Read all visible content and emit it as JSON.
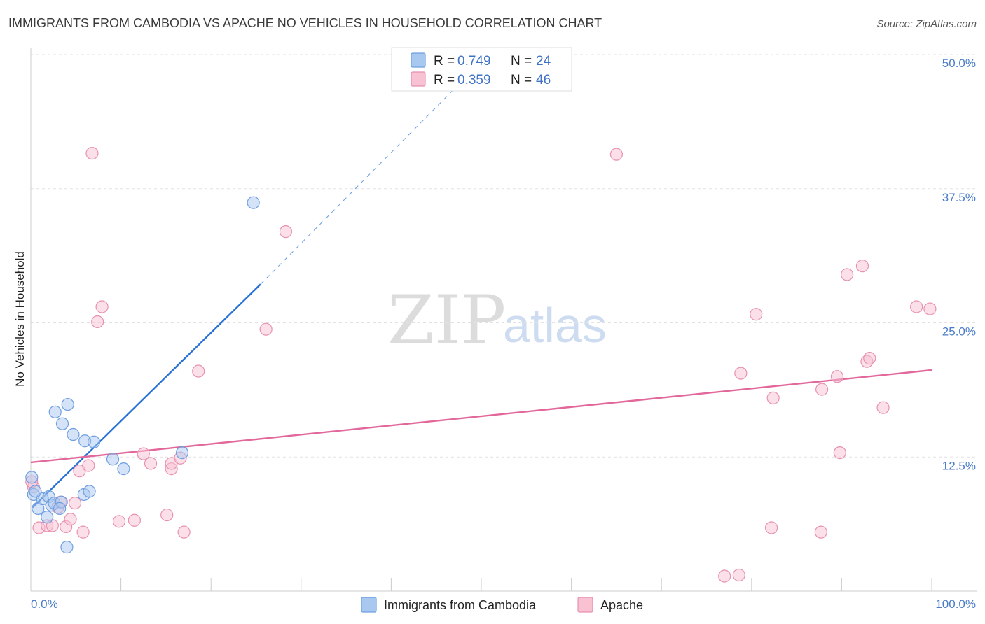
{
  "title": "IMMIGRANTS FROM CAMBODIA VS APACHE NO VEHICLES IN HOUSEHOLD CORRELATION CHART",
  "source": "Source: ZipAtlas.com",
  "watermark": {
    "zip": "ZIP",
    "atlas": "atlas"
  },
  "chart_data": {
    "type": "scatter",
    "ylabel": "No Vehicles in Household",
    "xlim": [
      0,
      100
    ],
    "ylim": [
      0,
      50
    ],
    "x_ticks": [
      "0.0%",
      "100.0%"
    ],
    "y_ticks": [
      {
        "value": 12.5,
        "label": "12.5%"
      },
      {
        "value": 25,
        "label": "25.0%"
      },
      {
        "value": 37.5,
        "label": "37.5%"
      },
      {
        "value": 50,
        "label": "50.0%"
      }
    ],
    "grid": true,
    "legend": {
      "position": "top-center",
      "entries": [
        {
          "r_label": "R = ",
          "r_value": "0.749",
          "n_label": "N = ",
          "n_value": "24",
          "color": "#7aaae8"
        },
        {
          "r_label": "R = ",
          "r_value": "0.359",
          "n_label": "N = ",
          "n_value": "46",
          "color": "#f0a0bc"
        }
      ]
    },
    "series": [
      {
        "name": "Immigrants from Cambodia",
        "fill": "#a9c8f0",
        "stroke": "#6f9fe0",
        "trend_color": "#2872d6",
        "trend": {
          "x0": 0.2,
          "y0": 7.8,
          "x1": 25.5,
          "y1": 28.6,
          "dash_to_x": 47,
          "dash_to_y": 46.8
        },
        "points": [
          [
            0.1,
            10.6
          ],
          [
            0.3,
            9.0
          ],
          [
            0.8,
            7.7
          ],
          [
            1.3,
            8.6
          ],
          [
            2.0,
            8.8
          ],
          [
            2.3,
            8.0
          ],
          [
            2.6,
            8.2
          ],
          [
            1.8,
            6.9
          ],
          [
            3.4,
            8.3
          ],
          [
            2.7,
            16.7
          ],
          [
            3.5,
            15.6
          ],
          [
            4.1,
            17.4
          ],
          [
            4.7,
            14.6
          ],
          [
            6.0,
            14.0
          ],
          [
            7.0,
            13.9
          ],
          [
            9.1,
            12.3
          ],
          [
            10.3,
            11.4
          ],
          [
            16.8,
            12.9
          ],
          [
            5.9,
            9.0
          ],
          [
            6.5,
            9.3
          ],
          [
            3.2,
            7.7
          ],
          [
            4.0,
            4.1
          ],
          [
            24.7,
            36.2
          ],
          [
            0.5,
            9.3
          ]
        ]
      },
      {
        "name": "Apache",
        "fill": "#f8c2d3",
        "stroke": "#e891b0",
        "trend_color": "#e2679a",
        "trend": {
          "x0": 0.0,
          "y0": 12.0,
          "x1": 100.0,
          "y1": 20.6
        },
        "points": [
          [
            0.3,
            9.7
          ],
          [
            0.9,
            5.9
          ],
          [
            1.8,
            6.1
          ],
          [
            2.4,
            6.1
          ],
          [
            3.0,
            7.8
          ],
          [
            3.3,
            8.3
          ],
          [
            3.9,
            6.0
          ],
          [
            4.4,
            6.7
          ],
          [
            4.9,
            8.2
          ],
          [
            5.4,
            11.2
          ],
          [
            5.8,
            5.5
          ],
          [
            6.4,
            11.7
          ],
          [
            6.8,
            40.8
          ],
          [
            7.4,
            25.1
          ],
          [
            7.9,
            26.5
          ],
          [
            9.8,
            6.5
          ],
          [
            11.5,
            6.6
          ],
          [
            12.5,
            12.8
          ],
          [
            13.3,
            11.9
          ],
          [
            15.1,
            7.1
          ],
          [
            15.6,
            11.4
          ],
          [
            15.6,
            11.9
          ],
          [
            16.6,
            12.4
          ],
          [
            17.0,
            5.5
          ],
          [
            18.6,
            20.5
          ],
          [
            26.1,
            24.4
          ],
          [
            28.3,
            33.5
          ],
          [
            65.0,
            40.7
          ],
          [
            77.0,
            1.4
          ],
          [
            78.6,
            1.5
          ],
          [
            78.8,
            20.3
          ],
          [
            80.5,
            25.8
          ],
          [
            82.4,
            18.0
          ],
          [
            82.2,
            5.9
          ],
          [
            87.7,
            5.5
          ],
          [
            87.8,
            18.8
          ],
          [
            89.5,
            20.0
          ],
          [
            89.8,
            12.9
          ],
          [
            90.6,
            29.5
          ],
          [
            92.3,
            30.3
          ],
          [
            92.8,
            21.4
          ],
          [
            93.1,
            21.7
          ],
          [
            94.6,
            17.1
          ],
          [
            98.3,
            26.5
          ],
          [
            99.8,
            26.3
          ],
          [
            0.1,
            10.2
          ]
        ]
      }
    ]
  }
}
